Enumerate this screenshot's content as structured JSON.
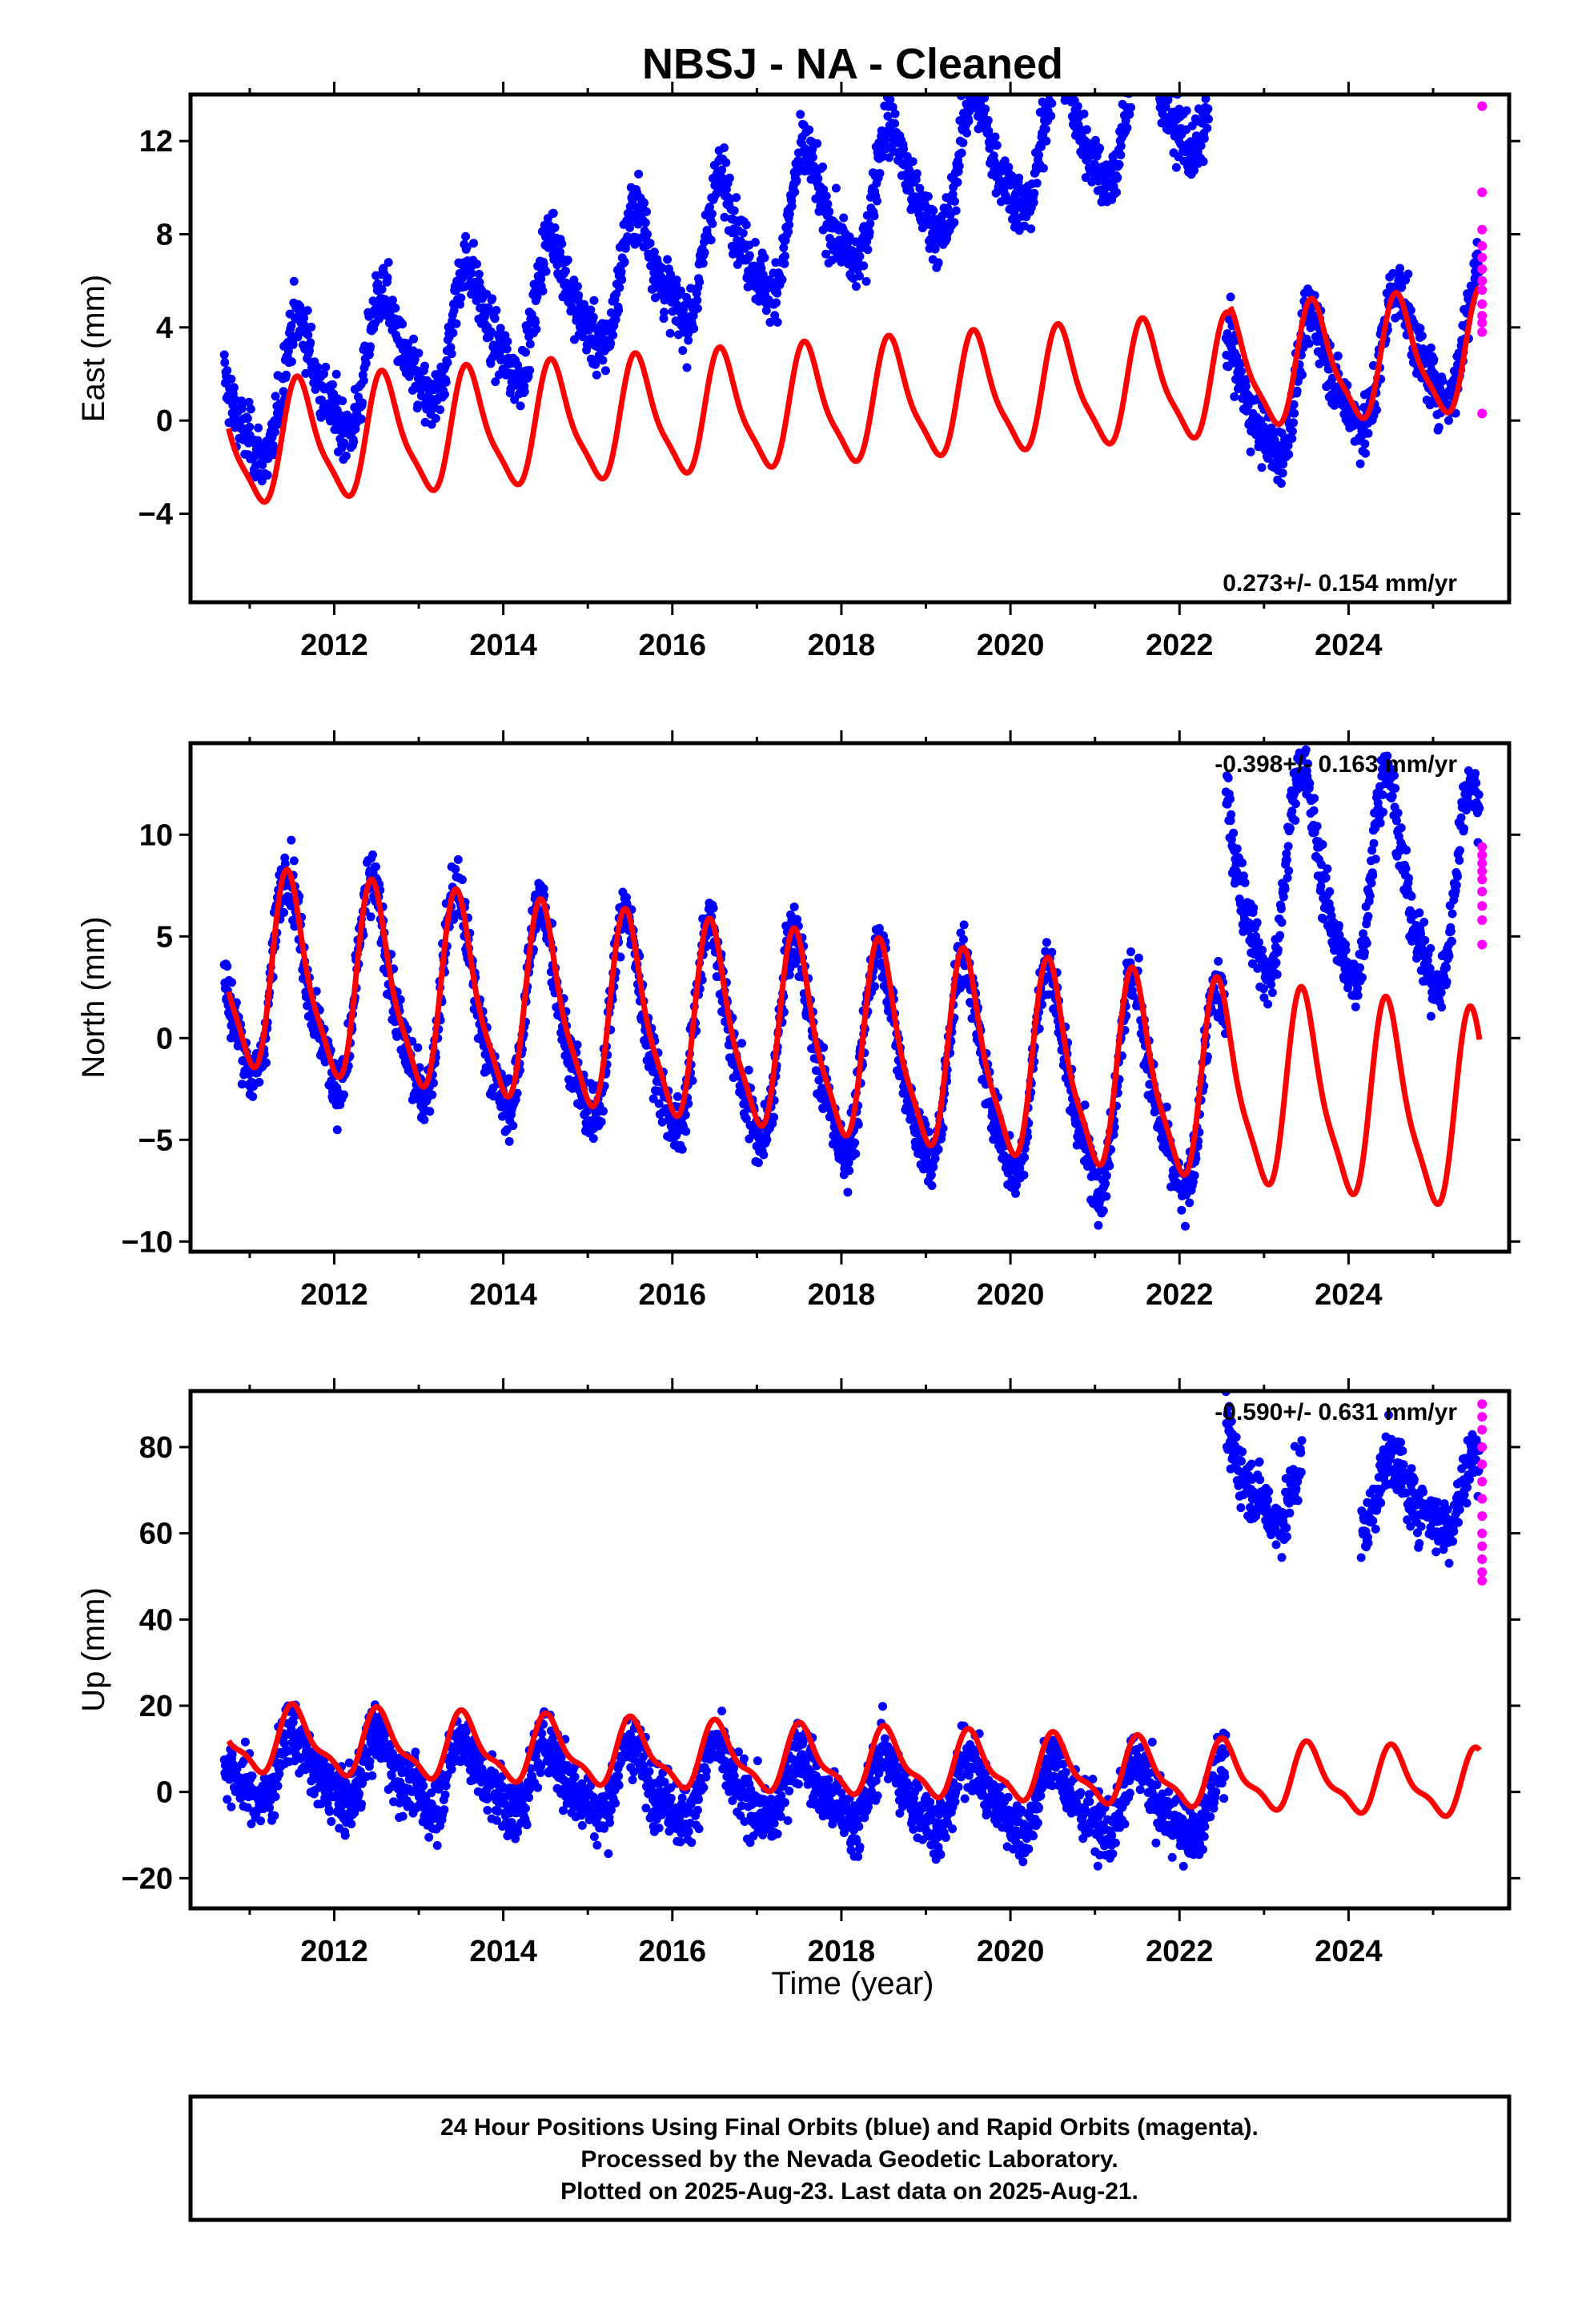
{
  "chart_data": {
    "title": "NBSJ  - NA - Cleaned",
    "xlabel": "Time (year)",
    "x_ticks": [
      "2012",
      "2014",
      "2016",
      "2018",
      "2020",
      "2022",
      "2024"
    ],
    "xlim": [
      2010.3,
      2025.9
    ],
    "colors": {
      "final": "#0000ff",
      "rapid": "#ff00ff",
      "model": "#ff0000",
      "frame": "#000000"
    },
    "panels": [
      {
        "type": "scatter",
        "component": "east",
        "ylabel": "East (mm)",
        "ylim": [
          -7.8,
          14
        ],
        "y_ticks": [
          12,
          8,
          4,
          0,
          -4
        ],
        "y_tick_labels": [
          "12",
          "8",
          "4",
          "0",
          "−4"
        ],
        "rate_label": "0.273+/- 0.154 mm/yr",
        "rate_position": "bottom-right",
        "series": [
          {
            "name": "Final Orbits",
            "color": "#0000ff",
            "time_range": [
              2010.7,
              2025.55
            ],
            "segments": [
              [
                2010.7,
                2022.55,
                0.28,
                1.2
              ],
              [
                2022.55,
                2025.55,
                0.28,
                1.2
              ]
            ]
          },
          {
            "name": "Rapid Orbits",
            "color": "#ff00ff",
            "values_y": [
              13.5,
              9.8,
              8.2,
              7.5,
              7.0,
              6.5,
              6.0,
              5.6,
              5.0,
              4.5,
              4.2,
              3.8,
              0.3
            ],
            "x": 2025.58
          },
          {
            "name": "Model",
            "color": "#ff0000",
            "type": "line",
            "annual_amp": 2.45,
            "semiannual_amp": 0.6,
            "peak_phase": 0.6,
            "segments": [
              [
                2010.75,
                2022.6,
                -1.2,
                0.25
              ],
              [
                2022.6,
                2025.55,
                2.1,
                0.25
              ]
            ]
          }
        ]
      },
      {
        "type": "scatter",
        "component": "north",
        "ylabel": "North (mm)",
        "ylim": [
          -10.5,
          14.5
        ],
        "y_ticks": [
          10,
          5,
          0,
          -5,
          -10
        ],
        "y_tick_labels": [
          "10",
          "5",
          "0",
          "−5",
          "−10"
        ],
        "rate_label": "-0.398+/- 0.163 mm/yr",
        "rate_position": "top-right",
        "series": [
          {
            "name": "Final Orbits",
            "color": "#0000ff",
            "time_range": [
              2010.7,
              2025.55
            ],
            "segments": [
              [
                2010.7,
                2022.55,
                3.0,
                -0.53
              ],
              [
                2022.55,
                2025.55,
                8.0,
                -0.4
              ]
            ]
          },
          {
            "name": "Rapid Orbits",
            "color": "#ff00ff",
            "values_y": [
              9.4,
              9.0,
              8.6,
              8.2,
              7.8,
              7.2,
              6.5,
              5.8,
              4.6
            ],
            "x": 2025.58
          },
          {
            "name": "Model",
            "color": "#ff0000",
            "type": "line",
            "annual_amp": 4.6,
            "semiannual_amp": 1.1,
            "peak_phase": 0.48,
            "segments": [
              [
                2010.75,
                2025.55,
                3.2,
                -0.48
              ]
            ]
          }
        ]
      },
      {
        "type": "scatter",
        "component": "up",
        "ylabel": "Up (mm)",
        "ylim": [
          -27,
          93
        ],
        "y_ticks": [
          80,
          60,
          40,
          20,
          0,
          -20
        ],
        "y_tick_labels": [
          "80",
          "60",
          "40",
          "20",
          "0",
          "−20"
        ],
        "rate_label": "-0.590+/- 0.631 mm/yr",
        "rate_position": "top-right",
        "series": [
          {
            "name": "Final Orbits",
            "color": "#0000ff",
            "time_range": [
              2010.7,
              2025.55
            ],
            "segments": [
              [
                2010.7,
                2022.55,
                5.5,
                -0.75
              ],
              [
                2022.55,
                2023.45,
                75.0,
                -8.0
              ],
              [
                2024.15,
                2025.55,
                68.0,
                0.5
              ]
            ]
          },
          {
            "name": "Rapid Orbits",
            "color": "#ff00ff",
            "values_y": [
              90,
              87,
              84,
              80,
              76,
              72,
              68,
              64,
              60,
              57,
              54,
              51,
              49
            ],
            "x": 2025.58
          },
          {
            "name": "Model",
            "color": "#ff0000",
            "type": "line",
            "annual_amp": 7.0,
            "semiannual_amp": 2.5,
            "peak_phase": 0.55,
            "segments": [
              [
                2010.75,
                2025.55,
                12.0,
                -0.72
              ]
            ]
          }
        ]
      }
    ]
  },
  "footer": {
    "line1": "24 Hour Positions Using Final Orbits (blue) and Rapid Orbits (magenta).",
    "line2": "Processed by the Nevada Geodetic Laboratory.",
    "line3": "Plotted on 2025-Aug-23. Last data on 2025-Aug-21."
  }
}
